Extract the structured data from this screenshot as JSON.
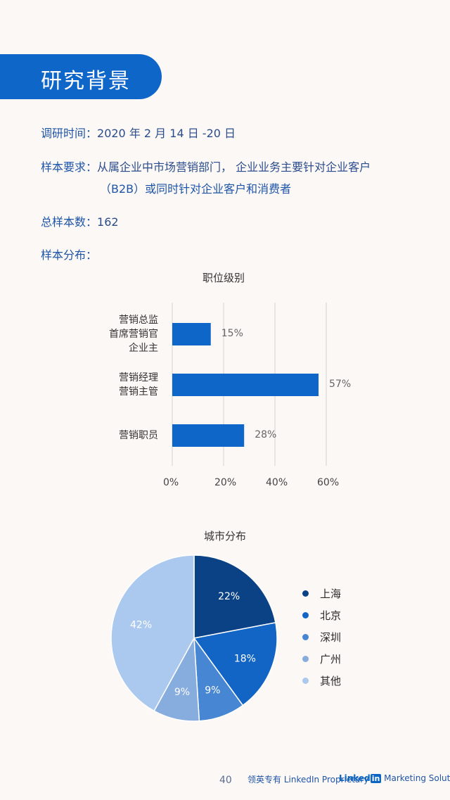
{
  "header": {
    "title": "研究背景"
  },
  "info": {
    "survey_time_label": "调研时间：",
    "survey_time_value": "2020 年 2 月 14 日 -20 日",
    "sample_req_label": "样本要求：",
    "sample_req_line1": "从属企业中市场营销部门，  企业业务主要针对企业客户",
    "sample_req_line2": "（B2B）或同时针对企业客户和消费者",
    "total_label": "总样本数：",
    "total_value": "162",
    "dist_label": "样本分布："
  },
  "chart_data": [
    {
      "type": "bar",
      "orientation": "horizontal",
      "title": "职位级别",
      "categories": [
        "营销总监\n首席营销官\n企业主",
        "营销经理\n营销主管",
        "营销职员"
      ],
      "values": [
        15,
        57,
        28
      ],
      "value_labels": [
        "15%",
        "57%",
        "28%"
      ],
      "xlim": [
        0,
        60
      ],
      "xticks": [
        "0%",
        "20%",
        "40%",
        "60%"
      ],
      "grid": true,
      "color": "#0f66c9"
    },
    {
      "type": "pie",
      "title": "城市分布",
      "labels": [
        "上海",
        "北京",
        "深圳",
        "广州",
        "其他"
      ],
      "values": [
        22,
        18,
        9,
        9,
        42
      ],
      "value_labels": [
        "22%",
        "18%",
        "9%",
        "9%",
        "42%"
      ],
      "colors": [
        "#0b4285",
        "#1265c5",
        "#4686d2",
        "#87acde",
        "#abc9ee"
      ],
      "legend": "right"
    }
  ],
  "footer": {
    "page_number": "40",
    "proprietary": "领英专有 LinkedIn Proprietary",
    "brand_linked": "Linked",
    "brand_in": "in",
    "brand_rest": "Marketing Solutions"
  }
}
